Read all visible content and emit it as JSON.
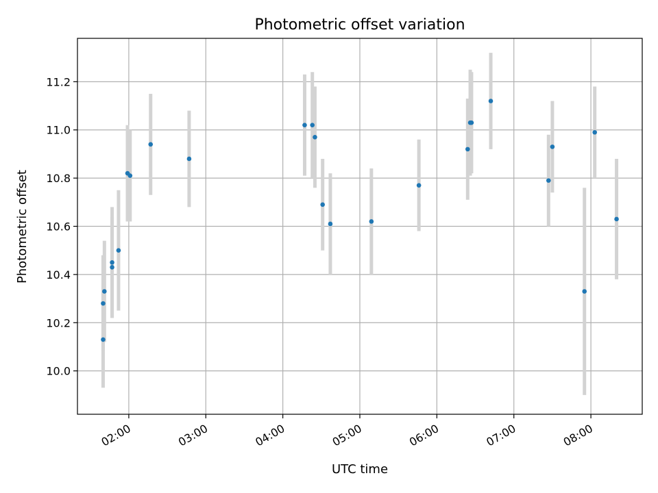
{
  "chart_data": {
    "type": "scatter",
    "title": "Photometric offset variation",
    "xlabel": "UTC time",
    "ylabel": "Photometric offset",
    "x_axis": {
      "ticks": [
        "02:00",
        "03:00",
        "04:00",
        "05:00",
        "06:00",
        "07:00",
        "08:00"
      ],
      "range": [
        "01:20",
        "08:40"
      ]
    },
    "y_axis": {
      "ticks": [
        "10.0",
        "10.2",
        "10.4",
        "10.6",
        "10.8",
        "11.0",
        "11.2"
      ],
      "range": [
        9.82,
        11.38
      ]
    },
    "grid": true,
    "colors": {
      "points": "#1f77b4",
      "error_bars": "#d3d3d3"
    },
    "points": [
      {
        "time": "01:40",
        "y": 10.13,
        "yerr": 0.2
      },
      {
        "time": "01:40",
        "y": 10.28,
        "yerr": 0.2
      },
      {
        "time": "01:41",
        "y": 10.33,
        "yerr": 0.21
      },
      {
        "time": "01:47",
        "y": 10.43,
        "yerr": 0.21
      },
      {
        "time": "01:47",
        "y": 10.45,
        "yerr": 0.23
      },
      {
        "time": "01:52",
        "y": 10.5,
        "yerr": 0.25
      },
      {
        "time": "01:59",
        "y": 10.82,
        "yerr": 0.2
      },
      {
        "time": "02:01",
        "y": 10.81,
        "yerr": 0.19
      },
      {
        "time": "02:17",
        "y": 10.94,
        "yerr": 0.21
      },
      {
        "time": "02:47",
        "y": 10.88,
        "yerr": 0.2
      },
      {
        "time": "04:17",
        "y": 11.02,
        "yerr": 0.21
      },
      {
        "time": "04:23",
        "y": 11.02,
        "yerr": 0.22
      },
      {
        "time": "04:25",
        "y": 10.97,
        "yerr": 0.21
      },
      {
        "time": "04:31",
        "y": 10.69,
        "yerr": 0.19
      },
      {
        "time": "04:37",
        "y": 10.61,
        "yerr": 0.21
      },
      {
        "time": "05:09",
        "y": 10.62,
        "yerr": 0.22
      },
      {
        "time": "05:46",
        "y": 10.77,
        "yerr": 0.19
      },
      {
        "time": "06:24",
        "y": 10.92,
        "yerr": 0.21
      },
      {
        "time": "06:26",
        "y": 11.03,
        "yerr": 0.22
      },
      {
        "time": "06:27",
        "y": 11.03,
        "yerr": 0.21
      },
      {
        "time": "06:42",
        "y": 11.12,
        "yerr": 0.2
      },
      {
        "time": "07:27",
        "y": 10.79,
        "yerr": 0.19
      },
      {
        "time": "07:30",
        "y": 10.93,
        "yerr": 0.19
      },
      {
        "time": "07:55",
        "y": 10.33,
        "yerr": 0.43
      },
      {
        "time": "08:03",
        "y": 10.99,
        "yerr": 0.19
      },
      {
        "time": "08:20",
        "y": 10.63,
        "yerr": 0.25
      }
    ]
  }
}
